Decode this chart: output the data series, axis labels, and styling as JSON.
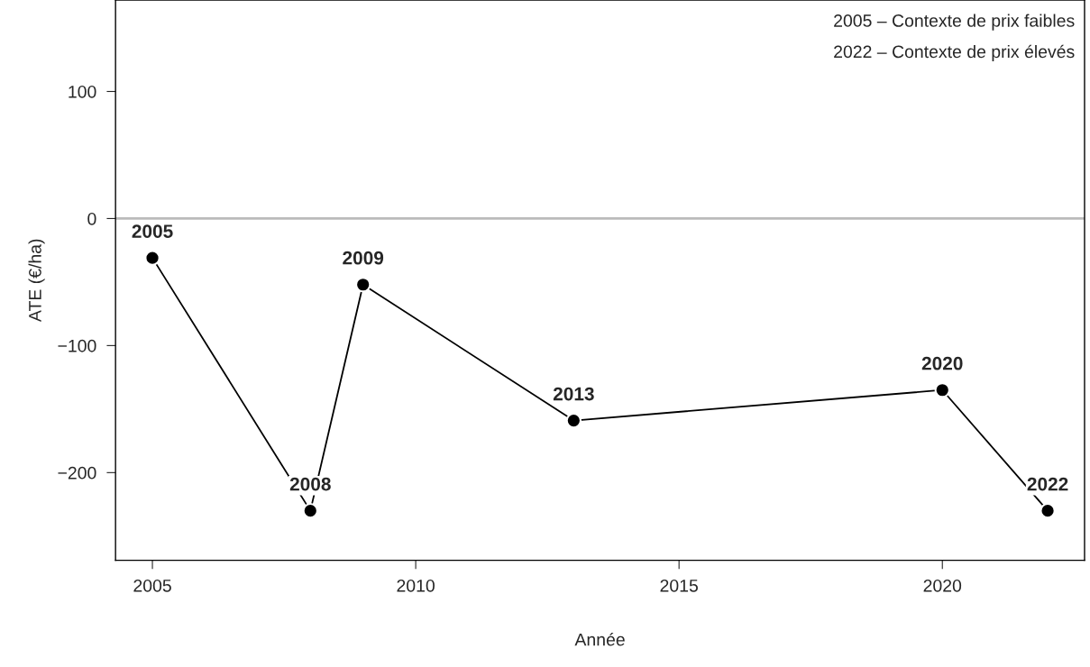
{
  "chart_data": {
    "type": "line",
    "xlabel": "Année",
    "ylabel": "ATE (€/ha)",
    "x": [
      2005,
      2008,
      2009,
      2013,
      2020,
      2022
    ],
    "series": [
      {
        "color": "#000000",
        "values": [
          -31,
          -230,
          -52,
          -159,
          -135,
          -230
        ]
      }
    ],
    "marker": "circle",
    "annotations": [
      "2005 – Contexte de prix faibles",
      "2022 – Contexte de prix élevés",
      {
        "text": "2005",
        "x": 2005,
        "y": -31
      },
      {
        "text": "2008",
        "x": 2008,
        "y": -230
      },
      {
        "text": "2009",
        "x": 2009,
        "y": -52
      },
      {
        "text": "2013",
        "x": 2013,
        "y": -159
      },
      {
        "text": "2020",
        "x": 2020,
        "y": -135
      },
      {
        "text": "2022",
        "x": 2022,
        "y": -230
      }
    ],
    "xlim": [
      2004.3,
      2022.7
    ],
    "ylim": [
      -269,
      172
    ],
    "xticks": [
      2005,
      2010,
      2015,
      2020
    ],
    "yticks": [
      {
        "value": -200,
        "label": "−200"
      },
      {
        "value": -100,
        "label": "−100"
      },
      0,
      100
    ],
    "ref_lines": [
      {
        "axis": "y",
        "value": 0,
        "color": "#bbbbbb"
      }
    ],
    "grid": false
  }
}
